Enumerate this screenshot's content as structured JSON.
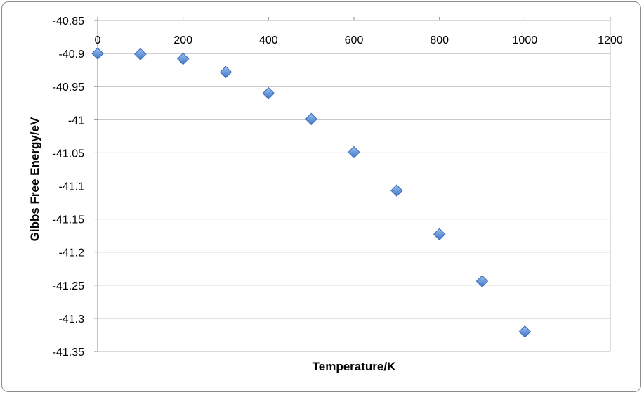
{
  "chart_data": {
    "type": "scatter",
    "xlabel": "Temperature/K",
    "ylabel": "Gibbs Free Energy/eV",
    "xlim": [
      0,
      1200
    ],
    "ylim": [
      -41.35,
      -40.85
    ],
    "x_ticks": [
      "0",
      "200",
      "400",
      "600",
      "800",
      "1000",
      "1200"
    ],
    "y_ticks": [
      "-40.85",
      "-40.9",
      "-40.95",
      "-41",
      "-41.05",
      "-41.1",
      "-41.15",
      "-41.2",
      "-41.25",
      "-41.3",
      "-41.35"
    ],
    "x_axis_position": "top",
    "grid": "horizontal",
    "legend": "none",
    "marker": "diamond",
    "marker_color": "#5b8fd9",
    "series": [
      {
        "x": [
          0,
          100,
          200,
          300,
          400,
          500,
          600,
          700,
          800,
          900,
          1000
        ],
        "y": [
          -40.9,
          -40.901,
          -40.908,
          -40.928,
          -40.96,
          -40.999,
          -41.049,
          -41.107,
          -41.173,
          -41.244,
          -41.32
        ]
      }
    ]
  }
}
